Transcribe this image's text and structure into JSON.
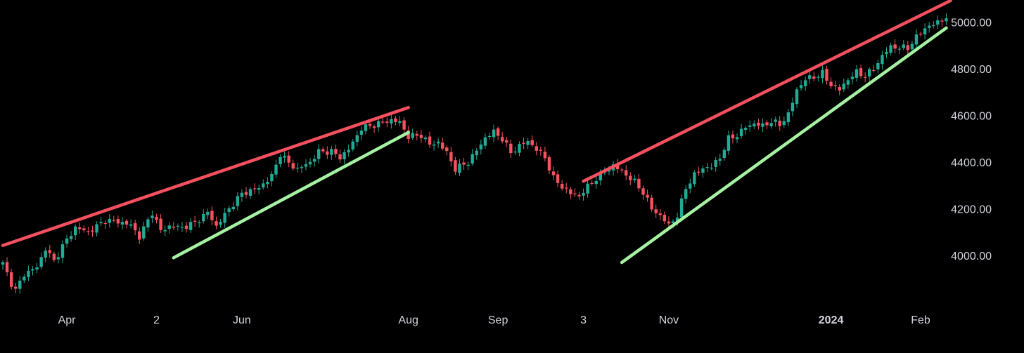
{
  "chart_data": {
    "type": "candlestick",
    "y_tick_labels": [
      "5000.00",
      "4800.00",
      "4600.00",
      "4400.00",
      "4200.00",
      "4000.00"
    ],
    "y_ticks": [
      5000,
      4800,
      4600,
      4400,
      4200,
      4000
    ],
    "x_tick_labels": [
      {
        "label": "Apr",
        "index": 15,
        "bold": false
      },
      {
        "label": "2",
        "index": 36,
        "bold": false
      },
      {
        "label": "Jun",
        "index": 56,
        "bold": false
      },
      {
        "label": "Aug",
        "index": 95,
        "bold": false
      },
      {
        "label": "Sep",
        "index": 116,
        "bold": false
      },
      {
        "label": "3",
        "index": 136,
        "bold": false
      },
      {
        "label": "Nov",
        "index": 156,
        "bold": false
      },
      {
        "label": "2024",
        "index": 194,
        "bold": true
      },
      {
        "label": "Feb",
        "index": 215,
        "bold": false
      }
    ],
    "ylim": [
      3800,
      5100
    ],
    "candle_count": 222,
    "anchors": [
      [
        0,
        3965
      ],
      [
        2,
        3880
      ],
      [
        3,
        3850
      ],
      [
        5,
        3920
      ],
      [
        8,
        3950
      ],
      [
        10,
        4030
      ],
      [
        12,
        3975
      ],
      [
        14,
        4040
      ],
      [
        17,
        4120
      ],
      [
        20,
        4100
      ],
      [
        24,
        4150
      ],
      [
        27,
        4145
      ],
      [
        30,
        4130
      ],
      [
        32,
        4080
      ],
      [
        35,
        4185
      ],
      [
        37,
        4105
      ],
      [
        39,
        4125
      ],
      [
        42,
        4120
      ],
      [
        45,
        4140
      ],
      [
        48,
        4185
      ],
      [
        50,
        4125
      ],
      [
        53,
        4200
      ],
      [
        56,
        4265
      ],
      [
        60,
        4290
      ],
      [
        63,
        4340
      ],
      [
        65,
        4435
      ],
      [
        67,
        4395
      ],
      [
        69,
        4370
      ],
      [
        72,
        4400
      ],
      [
        74,
        4445
      ],
      [
        77,
        4445
      ],
      [
        79,
        4420
      ],
      [
        81,
        4455
      ],
      [
        84,
        4545
      ],
      [
        87,
        4560
      ],
      [
        89,
        4570
      ],
      [
        91,
        4580
      ],
      [
        93,
        4570
      ],
      [
        95,
        4510
      ],
      [
        98,
        4515
      ],
      [
        100,
        4475
      ],
      [
        102,
        4485
      ],
      [
        104,
        4440
      ],
      [
        106,
        4370
      ],
      [
        109,
        4400
      ],
      [
        111,
        4450
      ],
      [
        113,
        4505
      ],
      [
        115,
        4530
      ],
      [
        117,
        4500
      ],
      [
        119,
        4440
      ],
      [
        121,
        4470
      ],
      [
        123,
        4490
      ],
      [
        125,
        4455
      ],
      [
        127,
        4420
      ],
      [
        129,
        4330
      ],
      [
        131,
        4295
      ],
      [
        133,
        4265
      ],
      [
        135,
        4255
      ],
      [
        137,
        4295
      ],
      [
        139,
        4330
      ],
      [
        141,
        4360
      ],
      [
        143,
        4385
      ],
      [
        145,
        4360
      ],
      [
        148,
        4315
      ],
      [
        150,
        4270
      ],
      [
        152,
        4200
      ],
      [
        154,
        4170
      ],
      [
        156,
        4130
      ],
      [
        158,
        4170
      ],
      [
        160,
        4290
      ],
      [
        162,
        4345
      ],
      [
        164,
        4375
      ],
      [
        166,
        4380
      ],
      [
        168,
        4420
      ],
      [
        170,
        4500
      ],
      [
        172,
        4515
      ],
      [
        174,
        4550
      ],
      [
        176,
        4565
      ],
      [
        178,
        4555
      ],
      [
        180,
        4575
      ],
      [
        182,
        4560
      ],
      [
        184,
        4605
      ],
      [
        186,
        4710
      ],
      [
        188,
        4755
      ],
      [
        190,
        4765
      ],
      [
        192,
        4780
      ],
      [
        194,
        4730
      ],
      [
        196,
        4710
      ],
      [
        198,
        4755
      ],
      [
        200,
        4785
      ],
      [
        202,
        4770
      ],
      [
        204,
        4800
      ],
      [
        206,
        4855
      ],
      [
        208,
        4895
      ],
      [
        210,
        4890
      ],
      [
        212,
        4890
      ],
      [
        214,
        4935
      ],
      [
        216,
        4975
      ],
      [
        218,
        4990
      ],
      [
        220,
        5010
      ],
      [
        221,
        5020
      ]
    ],
    "trendlines": [
      {
        "name": "resistance-1",
        "color": "#f4505f",
        "from": [
          0,
          4043
        ],
        "to": [
          95,
          4634
        ]
      },
      {
        "name": "support-1",
        "color": "#a6f2a3",
        "from": [
          40,
          3990
        ],
        "to": [
          95,
          4527
        ]
      },
      {
        "name": "resistance-2",
        "color": "#f4505f",
        "from": [
          136,
          4318
        ],
        "to": [
          222,
          5092
        ]
      },
      {
        "name": "support-2",
        "color": "#a6f2a3",
        "from": [
          145,
          3970
        ],
        "to": [
          221,
          4975
        ]
      }
    ],
    "colors": {
      "up": "#22ab94",
      "down": "#f7525f",
      "resistance": "#f4505f",
      "support": "#a6f2a3",
      "text": "#d1d4dc",
      "background": "#000000"
    }
  }
}
